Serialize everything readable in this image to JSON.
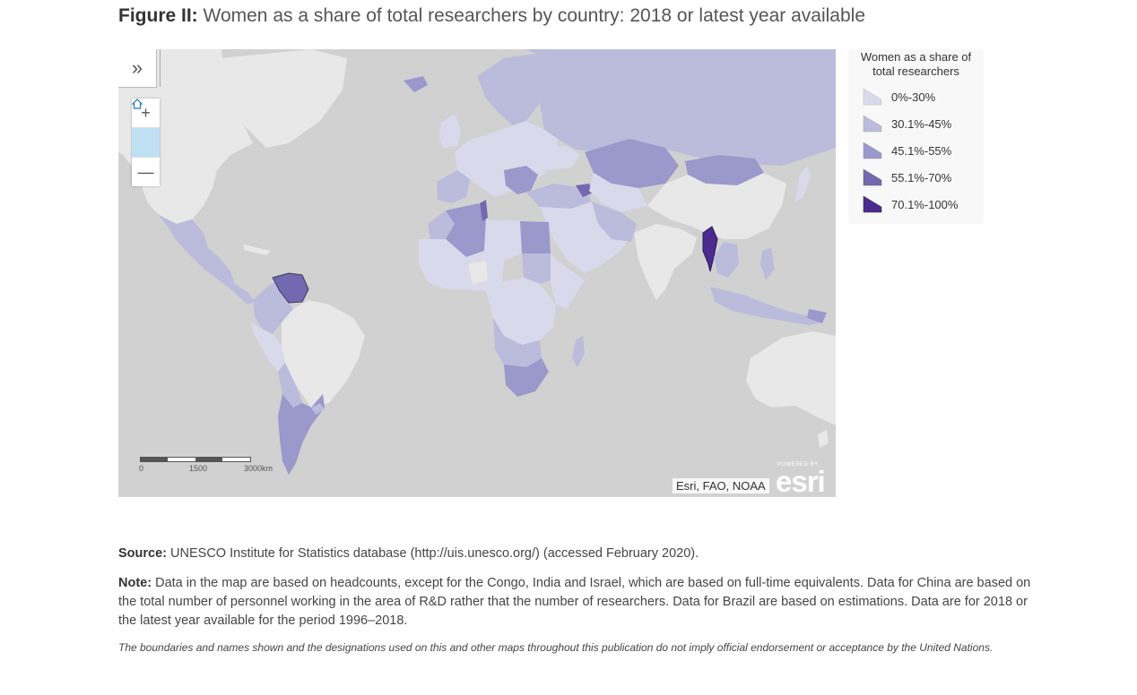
{
  "figure": {
    "label": "Figure II:",
    "title": "Women as a share of total researchers by country: 2018 or latest year available"
  },
  "map": {
    "controls": {
      "expand_icon": "double-chevron-right-icon",
      "zoom_in": "+",
      "home_icon": "home-icon",
      "zoom_out": "—"
    },
    "scalebar": {
      "labels": [
        "0",
        "1500",
        "3000km"
      ]
    },
    "attribution": "Esri, FAO, NOAA",
    "logo": {
      "powered": "POWERED BY",
      "word": "esri"
    },
    "colors": {
      "ocean": "#d1d1d1",
      "nodata": "#e8e8e8",
      "class1": "#d9d9ec",
      "class2": "#bbbbdc",
      "class3": "#9b98cb",
      "class4": "#7468b0",
      "class5": "#4b2b8e"
    }
  },
  "legend": {
    "title": "Women as a share of total researchers",
    "items": [
      {
        "label": "0%-30%",
        "color": "#d9d9ec"
      },
      {
        "label": "30.1%-45%",
        "color": "#bbbbdc"
      },
      {
        "label": "45.1%-55%",
        "color": "#9b98cb"
      },
      {
        "label": "55.1%-70%",
        "color": "#7468b0"
      },
      {
        "label": "70.1%-100%",
        "color": "#4b2b8e"
      }
    ]
  },
  "source": {
    "label": "Source:",
    "text": "UNESCO Institute for Statistics database (http://uis.unesco.org/) (accessed February 2020)."
  },
  "note": {
    "label": "Note:",
    "text": "Data in the map are based on headcounts, except for the Congo, India and Israel, which are based on full-time equivalents. Data for China are based on the total number of personnel working in the area of R&D rather that the number of researchers. Data for Brazil are based on estimations. Data are for 2018 or the latest year available for the period 1996–2018."
  },
  "disclaimer": "The boundaries and names shown and the designations used on this and other maps throughout this publication do not imply official endorsement or acceptance by the United Nations."
}
